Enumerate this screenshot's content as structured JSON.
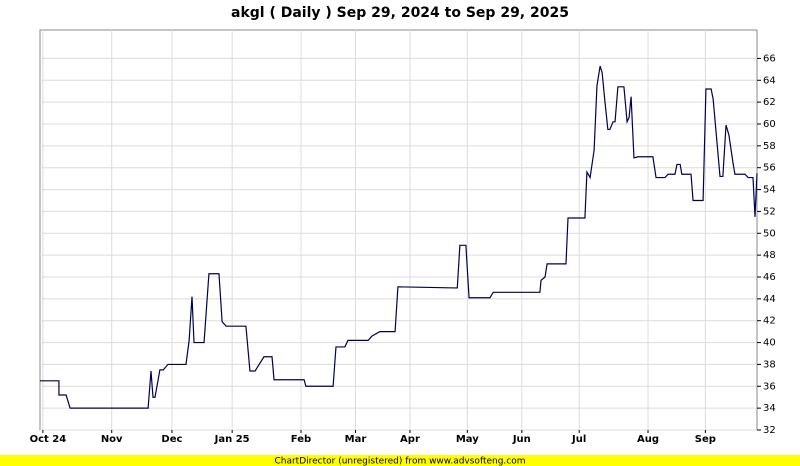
{
  "chart_data": {
    "type": "line",
    "title": "akgl ( Daily ) Sep 29, 2024 to Sep 29, 2025",
    "footer": "ChartDirector (unregistered) from www.advsofteng.com",
    "x": [
      0,
      6.6,
      6.6,
      9.1,
      10.5,
      37.7,
      38.7,
      39.4,
      40.1,
      41.8,
      43,
      44.6,
      50.9,
      52,
      53,
      53.7,
      57.2,
      58.9,
      62.4,
      63.5,
      64.9,
      71.8,
      73.2,
      75,
      76.4,
      78.1,
      80.9,
      81.6,
      92.1,
      92.7,
      102.2,
      103.2,
      106.3,
      107.4,
      114.4,
      115.8,
      118.5,
      123.8,
      124.8,
      144.7,
      145.5,
      146.4,
      148.5,
      149.6,
      156.9,
      158,
      174.3,
      174.7,
      176.1,
      176.8,
      183.4,
      184.1,
      190,
      190.7,
      191.8,
      193.2,
      194.2,
      195.3,
      196,
      197,
      198,
      198.7,
      199.8,
      200.5,
      201.5,
      203.6,
      204.7,
      205.4,
      206.1,
      207.1,
      208.5,
      213.7,
      214.8,
      217.9,
      219,
      221.4,
      222.1,
      223.2,
      223.8,
      227,
      227.7,
      231.2,
      232.2,
      234,
      234.7,
      237.1,
      238.1,
      239.2,
      240.2,
      241.6,
      242.3,
      245.8,
      246.9,
      248.6,
      249.3,
      250
    ],
    "series": [
      {
        "name": "akgl",
        "color": "#000050",
        "values": [
          36.5,
          36.5,
          35.2,
          35.2,
          34,
          34,
          37.4,
          35,
          35,
          37.5,
          37.5,
          38,
          38,
          40.2,
          44.2,
          40,
          40,
          46.3,
          46.3,
          41.9,
          41.5,
          41.5,
          37.4,
          37.4,
          38,
          38.7,
          38.7,
          36.6,
          36.6,
          36,
          36,
          39.6,
          39.6,
          40.2,
          40.2,
          40.6,
          41,
          41,
          45.1,
          45,
          45,
          48.9,
          48.9,
          44.1,
          44.1,
          44.6,
          44.6,
          45.7,
          46,
          47.2,
          47.2,
          51.4,
          51.4,
          55.6,
          55.1,
          57.6,
          63.5,
          65.3,
          64.7,
          62,
          59.5,
          59.5,
          60.2,
          60.2,
          63.4,
          63.4,
          60.2,
          60.6,
          62.5,
          56.9,
          57,
          57,
          55.1,
          55.1,
          55.4,
          55.4,
          56.3,
          56.3,
          55.4,
          55.4,
          53,
          53,
          63.2,
          63.2,
          62.3,
          55.2,
          55.2,
          59.9,
          59,
          56.5,
          55.4,
          55.4,
          55.1,
          55.1,
          51.5,
          55.5
        ]
      }
    ],
    "xlim": [
      0,
      250
    ],
    "xticks": [
      {
        "value": 1,
        "label": "Oct 24"
      },
      {
        "value": 25,
        "label": "Nov"
      },
      {
        "value": 46,
        "label": "Dec"
      },
      {
        "value": 67,
        "label": "Jan 25"
      },
      {
        "value": 91,
        "label": "Feb"
      },
      {
        "value": 110,
        "label": "Mar"
      },
      {
        "value": 129,
        "label": "Apr"
      },
      {
        "value": 149,
        "label": "May"
      },
      {
        "value": 168,
        "label": "Jun"
      },
      {
        "value": 188,
        "label": "Jul"
      },
      {
        "value": 212,
        "label": "Aug"
      },
      {
        "value": 232,
        "label": "Sep"
      }
    ],
    "ylim": [
      32,
      68.6
    ],
    "yticks": [
      32,
      34,
      36,
      38,
      40,
      42,
      44,
      46,
      48,
      50,
      52,
      54,
      56,
      58,
      60,
      62,
      64,
      66
    ],
    "grid": true
  }
}
